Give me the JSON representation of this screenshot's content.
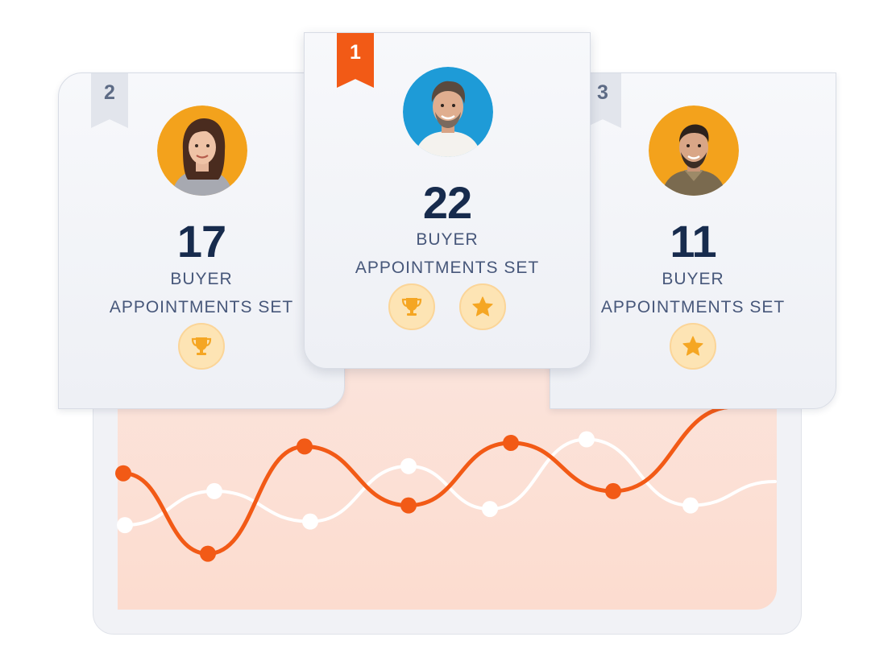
{
  "colors": {
    "accent": "#f25a16",
    "secondary_line": "#ffffff",
    "chart_fill": "#fce1d6",
    "number_text": "#172b4d",
    "label_text": "#47577a",
    "badge_fill": "#fde4b4",
    "badge_icon": "#f5a623"
  },
  "leaderboard": [
    {
      "rank": "1",
      "count": "22",
      "label_line1": "BUYER",
      "label_line2": "APPOINTMENTS SET",
      "avatar_bg": "#1e9bd7",
      "badges": [
        "trophy-icon",
        "star-icon"
      ]
    },
    {
      "rank": "2",
      "count": "17",
      "label_line1": "BUYER",
      "label_line2": "APPOINTMENTS SET",
      "avatar_bg": "#f3a21c",
      "badges": [
        "trophy-icon"
      ]
    },
    {
      "rank": "3",
      "count": "11",
      "label_line1": "BUYER",
      "label_line2": "APPOINTMENTS SET",
      "avatar_bg": "#f3a21c",
      "badges": [
        "star-icon"
      ]
    }
  ],
  "chart_data": {
    "type": "line",
    "xlabel": "",
    "ylabel": "",
    "grid": false,
    "ylim": [
      0,
      100
    ],
    "series": [
      {
        "color": "#f25a16",
        "values": [
          65,
          20,
          80,
          47,
          82,
          55
        ]
      },
      {
        "color": "#ffffff",
        "values": [
          36,
          55,
          38,
          69,
          45,
          84,
          47
        ]
      }
    ]
  }
}
